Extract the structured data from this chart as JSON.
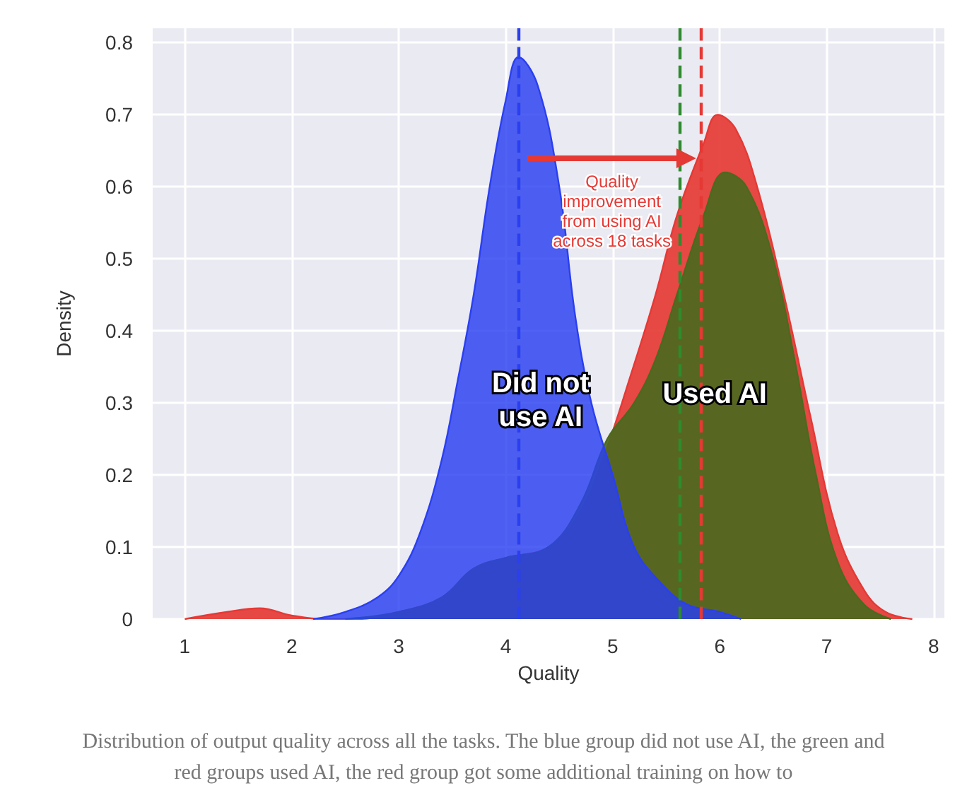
{
  "chart_data": {
    "type": "area",
    "xlabel": "Quality",
    "ylabel": "Density",
    "xlim": [
      0.7,
      8.1
    ],
    "xticks": [
      1,
      2,
      3,
      4,
      5,
      6,
      7,
      8
    ],
    "ylim": [
      0,
      0.82
    ],
    "yticks": [
      0,
      0.1,
      0.2,
      0.3,
      0.4,
      0.5,
      0.6,
      0.7,
      0.8
    ],
    "grid": true,
    "series": [
      {
        "color": "#e53935",
        "x": [
          1.0,
          1.4,
          1.7,
          2.0,
          2.3,
          2.6,
          3.0,
          3.4,
          3.7,
          4.0,
          4.4,
          4.7,
          4.95,
          5.15,
          5.4,
          5.6,
          5.85,
          5.98,
          6.15,
          6.35,
          6.6,
          6.85,
          7.1,
          7.35,
          7.55,
          7.8
        ],
        "values": [
          0,
          0.01,
          0.015,
          0.005,
          0,
          0,
          0.01,
          0.03,
          0.07,
          0.085,
          0.1,
          0.15,
          0.24,
          0.33,
          0.45,
          0.56,
          0.66,
          0.7,
          0.68,
          0.6,
          0.45,
          0.28,
          0.12,
          0.04,
          0.01,
          0
        ]
      },
      {
        "color": "#4b6a1e",
        "x": [
          2.5,
          3.0,
          3.4,
          3.7,
          4.0,
          4.4,
          4.7,
          4.95,
          5.2,
          5.4,
          5.6,
          5.85,
          6.05,
          6.25,
          6.5,
          6.7,
          6.9,
          7.1,
          7.35,
          7.6
        ],
        "values": [
          0,
          0.01,
          0.03,
          0.07,
          0.085,
          0.1,
          0.16,
          0.25,
          0.3,
          0.36,
          0.45,
          0.56,
          0.62,
          0.6,
          0.5,
          0.36,
          0.2,
          0.08,
          0.02,
          0
        ]
      },
      {
        "color": "#2a3ff0",
        "x": [
          2.2,
          2.5,
          2.8,
          3.0,
          3.2,
          3.4,
          3.55,
          3.7,
          3.85,
          4.0,
          4.12,
          4.3,
          4.5,
          4.65,
          4.8,
          5.0,
          5.2,
          5.45,
          5.7,
          6.0,
          6.2
        ],
        "values": [
          0,
          0.01,
          0.03,
          0.06,
          0.12,
          0.22,
          0.33,
          0.45,
          0.6,
          0.72,
          0.78,
          0.74,
          0.6,
          0.42,
          0.3,
          0.2,
          0.1,
          0.05,
          0.02,
          0.01,
          0
        ]
      }
    ],
    "ref_lines": [
      {
        "axis": "x",
        "value": 4.12,
        "color": "#2a3ff0",
        "line_style": "dashed"
      },
      {
        "axis": "x",
        "value": 5.63,
        "color": "#2e8b2e",
        "line_style": "dashed"
      },
      {
        "axis": "x",
        "value": 5.83,
        "color": "#e53935",
        "line_style": "dashed"
      }
    ],
    "annotations": [
      "Did not use AI",
      "Used AI",
      "Quality improvement from using AI across 18 tasks",
      "Distribution of output quality across all the tasks. The blue group did not use AI, the green and red groups used AI, the red group got some additional training on how to"
    ]
  }
}
